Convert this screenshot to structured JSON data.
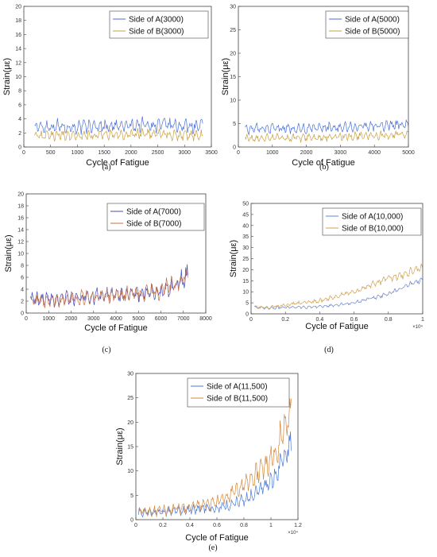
{
  "chart_data": [
    {
      "id": "a",
      "type": "line",
      "caption": "(a)",
      "xlabel": "Cycle of Fatigue",
      "ylabel": "Strain(με)",
      "xlim": [
        0,
        3500
      ],
      "ylim": [
        0,
        20
      ],
      "xticks": [
        "0",
        "500",
        "1000",
        "1500",
        "2000",
        "2500",
        "3000",
        "3500"
      ],
      "yticks": [
        "0",
        "2",
        "4",
        "6",
        "8",
        "10",
        "12",
        "14",
        "16",
        "18",
        "20"
      ],
      "x_exponent": "",
      "legend_position": "top-right",
      "grid": false,
      "series": [
        {
          "name": "Side of A(3000)",
          "color": "#4a6fd8",
          "x": [
            200,
            600,
            1000,
            1400,
            1800,
            2200,
            2600,
            3000,
            3340
          ],
          "y": [
            2.8,
            3.0,
            2.8,
            3.0,
            2.9,
            3.2,
            3.1,
            3.0,
            2.9
          ],
          "amp": 1.2
        },
        {
          "name": "Side of B(3000)",
          "color": "#c8a040",
          "x": [
            200,
            600,
            1000,
            1400,
            1800,
            2200,
            2600,
            3000,
            3340
          ],
          "y": [
            1.5,
            1.7,
            1.6,
            1.8,
            1.6,
            1.9,
            1.8,
            1.7,
            1.6
          ],
          "amp": 1.1
        }
      ]
    },
    {
      "id": "b",
      "type": "line",
      "caption": "(b)",
      "xlabel": "Cycle of Fatigue",
      "ylabel": "Strain(με)",
      "xlim": [
        0,
        5000
      ],
      "ylim": [
        0,
        30
      ],
      "xticks": [
        "0",
        "1000",
        "2000",
        "3000",
        "4000",
        "5000"
      ],
      "yticks": [
        "0",
        "5",
        "10",
        "15",
        "20",
        "25",
        "30"
      ],
      "x_exponent": "",
      "legend_position": "top-right",
      "grid": false,
      "series": [
        {
          "name": "Side of A(5000)",
          "color": "#4a6fd8",
          "x": [
            200,
            1000,
            2000,
            3000,
            4000,
            5000
          ],
          "y": [
            3.8,
            4.0,
            3.9,
            4.2,
            4.5,
            4.8
          ],
          "amp": 1.3
        },
        {
          "name": "Side of B(5000)",
          "color": "#c8a040",
          "x": [
            200,
            1000,
            2000,
            3000,
            4000,
            5000
          ],
          "y": [
            1.8,
            2.0,
            1.9,
            2.2,
            2.4,
            2.8
          ],
          "amp": 1.3
        }
      ]
    },
    {
      "id": "c",
      "type": "line",
      "caption": "(c)",
      "xlabel": "Cycle of Fatigue",
      "ylabel": "Strain(με)",
      "xlim": [
        0,
        8000
      ],
      "ylim": [
        0,
        20
      ],
      "xticks": [
        "0",
        "1000",
        "2000",
        "3000",
        "4000",
        "5000",
        "6000",
        "7000",
        "8000"
      ],
      "yticks": [
        "0",
        "2",
        "4",
        "6",
        "8",
        "10",
        "12",
        "14",
        "16",
        "18",
        "20"
      ],
      "x_exponent": "",
      "legend_position": "top-right",
      "grid": false,
      "series": [
        {
          "name": "Side of A(7000)",
          "color": "#4a4ab8",
          "x": [
            200,
            1000,
            2000,
            3000,
            4000,
            5000,
            6000,
            6500,
            7000,
            7200
          ],
          "y": [
            2.2,
            2.3,
            2.5,
            2.8,
            3.0,
            3.2,
            3.6,
            4.2,
            5.5,
            6.5
          ],
          "amp": 1.6
        },
        {
          "name": "Side of B(7000)",
          "color": "#c87040",
          "x": [
            200,
            1000,
            2000,
            3000,
            4000,
            5000,
            6000,
            6500,
            7000,
            7200
          ],
          "y": [
            2.0,
            2.2,
            2.4,
            2.7,
            3.0,
            3.3,
            3.8,
            4.4,
            6.0,
            7.0
          ],
          "amp": 1.6
        }
      ]
    },
    {
      "id": "d",
      "type": "line",
      "caption": "(d)",
      "xlabel": "Cycle of Fatigue",
      "ylabel": "Strain(με)",
      "xlim": [
        0,
        1
      ],
      "ylim": [
        0,
        50
      ],
      "xticks": [
        "0",
        "0.2",
        "0.4",
        "0.6",
        "0.8",
        "1"
      ],
      "yticks": [
        "0",
        "5",
        "10",
        "15",
        "20",
        "25",
        "30",
        "35",
        "40",
        "45",
        "50"
      ],
      "x_exponent": "×10⁴",
      "legend_position": "top-right",
      "grid": false,
      "series": [
        {
          "name": "Side of A(10,000)",
          "color": "#6a82d0",
          "x": [
            0.02,
            0.1,
            0.2,
            0.3,
            0.4,
            0.5,
            0.6,
            0.7,
            0.8,
            0.9,
            1.0
          ],
          "y": [
            3.0,
            2.5,
            3.0,
            3.0,
            3.2,
            4.0,
            5.0,
            7.0,
            9.0,
            12.5,
            15.5
          ],
          "amp": 1.0
        },
        {
          "name": "Side of B(10,000)",
          "color": "#d0a050",
          "x": [
            0.02,
            0.1,
            0.2,
            0.3,
            0.4,
            0.5,
            0.6,
            0.7,
            0.8,
            0.9,
            1.0
          ],
          "y": [
            3.0,
            3.0,
            4.0,
            5.0,
            6.0,
            8.0,
            10.0,
            13.0,
            16.0,
            18.0,
            21.0
          ],
          "amp": 1.3
        }
      ]
    },
    {
      "id": "e",
      "type": "line",
      "caption": "(e)",
      "xlabel": "Cycle of Fatigue",
      "ylabel": "Strain(με)",
      "xlim": [
        0,
        1.2
      ],
      "ylim": [
        0,
        30
      ],
      "xticks": [
        "0",
        "0.2",
        "0.4",
        "0.6",
        "0.8",
        "1",
        "1.2"
      ],
      "yticks": [
        "0",
        "5",
        "10",
        "15",
        "20",
        "25",
        "30"
      ],
      "x_exponent": "×10⁴",
      "legend_position": "top-left",
      "grid": false,
      "series": [
        {
          "name": "Side of A(11,500)",
          "color": "#4a7ad8",
          "x": [
            0.02,
            0.2,
            0.4,
            0.6,
            0.7,
            0.8,
            0.9,
            1.0,
            1.05,
            1.1,
            1.15
          ],
          "y": [
            1.5,
            1.6,
            2.0,
            2.4,
            3.0,
            4.0,
            5.5,
            8.0,
            10.0,
            13.0,
            16.0
          ],
          "amp": 1.6
        },
        {
          "name": "Side of B(11,500)",
          "color": "#d08a40",
          "x": [
            0.02,
            0.2,
            0.4,
            0.6,
            0.7,
            0.8,
            0.9,
            1.0,
            1.05,
            1.1,
            1.15
          ],
          "y": [
            1.5,
            1.8,
            2.5,
            3.5,
            5.0,
            7.0,
            9.5,
            12.5,
            15.0,
            19.0,
            24.0
          ],
          "amp": 1.8
        }
      ]
    }
  ]
}
